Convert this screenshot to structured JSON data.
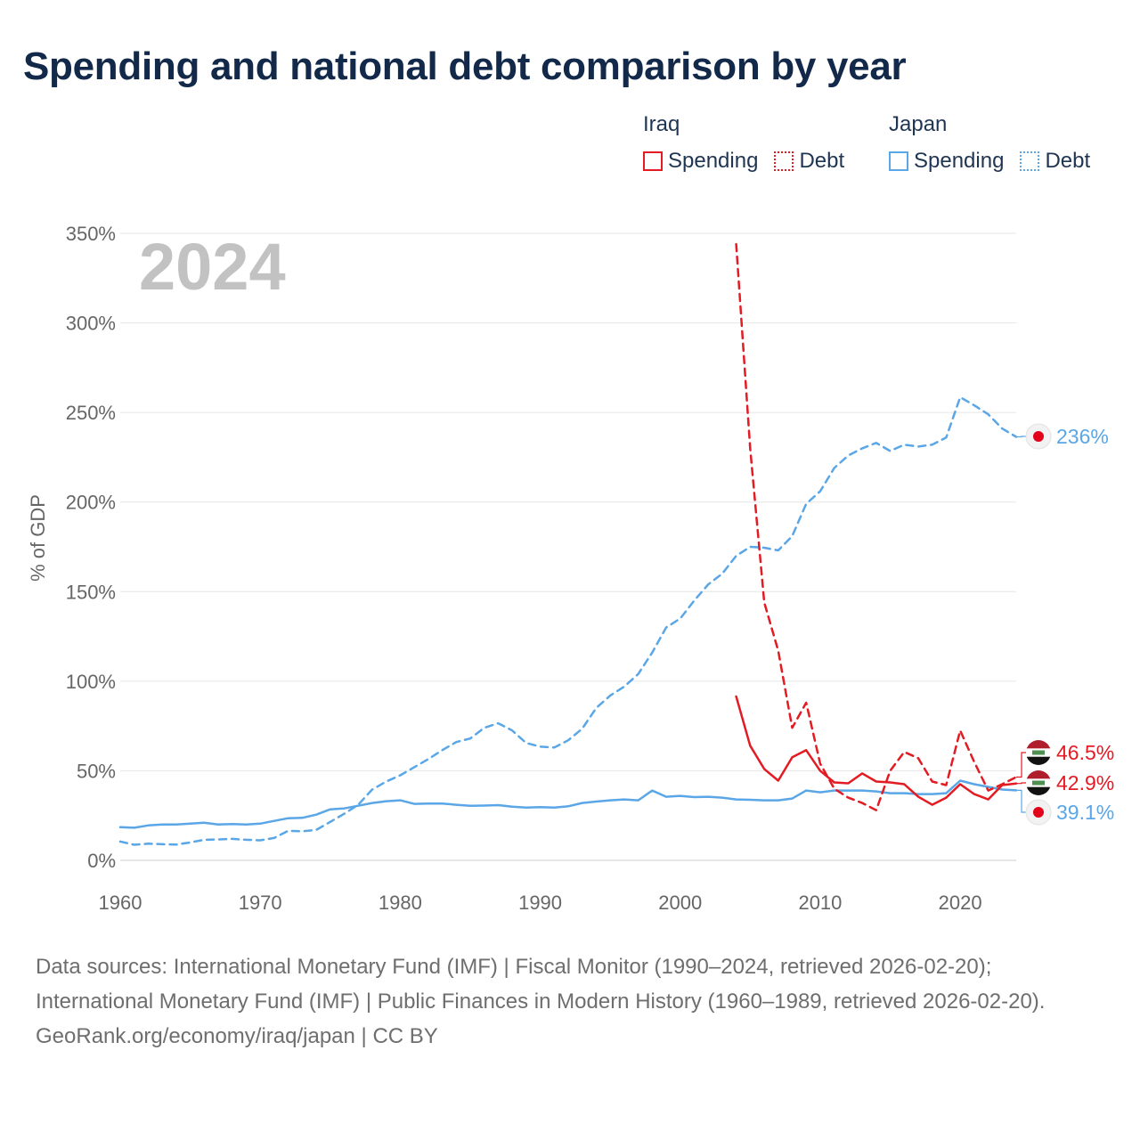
{
  "title": "Spending and national debt comparison by year",
  "legend": {
    "groups": [
      {
        "country": "Iraq",
        "items": [
          {
            "label": "Spending"
          },
          {
            "label": "Debt"
          }
        ]
      },
      {
        "country": "Japan",
        "items": [
          {
            "label": "Spending"
          },
          {
            "label": "Debt"
          }
        ]
      }
    ]
  },
  "colors": {
    "iraq": "#e31b23",
    "japan": "#5aa6e6",
    "grid": "#e6e6e6",
    "axis_text": "#666666",
    "year_watermark": "#c2c2c2"
  },
  "footer": {
    "sources": "Data sources: International Monetary Fund (IMF) | Fiscal Monitor (1990–2024, retrieved 2026-02-20); International Monetary Fund (IMF) | Public Finances in Modern History (1960–1989, retrieved 2026-02-20).",
    "credit": "GeoRank.org/economy/iraq/japan | CC BY"
  },
  "chart_data": {
    "type": "line",
    "year_label": "2024",
    "ylabel": "% of GDP",
    "xlabel": "",
    "xlim": [
      1960,
      2024
    ],
    "ylim": [
      0,
      350
    ],
    "y_ticks": [
      0,
      50,
      100,
      150,
      200,
      250,
      300,
      350
    ],
    "y_tick_labels": [
      "0%",
      "50%",
      "100%",
      "150%",
      "200%",
      "250%",
      "300%",
      "350%"
    ],
    "x_ticks": [
      1960,
      1970,
      1980,
      1990,
      2000,
      2010,
      2020
    ],
    "x_tick_labels": [
      "1960",
      "1970",
      "1980",
      "1990",
      "2000",
      "2010",
      "2020"
    ],
    "grid": true,
    "series": [
      {
        "name": "Japan Debt",
        "country": "Japan",
        "metric": "Debt",
        "color": "#5aa6e6",
        "style": "dashed",
        "x": [
          1960,
          1961,
          1962,
          1963,
          1964,
          1965,
          1966,
          1967,
          1968,
          1969,
          1970,
          1971,
          1972,
          1973,
          1974,
          1975,
          1976,
          1977,
          1978,
          1979,
          1980,
          1981,
          1982,
          1983,
          1984,
          1985,
          1986,
          1987,
          1988,
          1989,
          1990,
          1991,
          1992,
          1993,
          1994,
          1995,
          1996,
          1997,
          1998,
          1999,
          2000,
          2001,
          2002,
          2003,
          2004,
          2005,
          2006,
          2007,
          2008,
          2009,
          2010,
          2011,
          2012,
          2013,
          2014,
          2015,
          2016,
          2017,
          2018,
          2019,
          2020,
          2021,
          2022,
          2023,
          2024
        ],
        "values": [
          10.5,
          8.7,
          9.3,
          9.0,
          8.8,
          10.0,
          11.5,
          11.7,
          12.0,
          11.5,
          11.2,
          12.5,
          16.5,
          16.2,
          17.0,
          21.5,
          26.0,
          31.0,
          39.5,
          44.0,
          47.5,
          52.0,
          56.5,
          61.5,
          66.0,
          68.0,
          74.0,
          76.5,
          72.5,
          65.5,
          63.5,
          63.0,
          67.0,
          73.5,
          85.0,
          92.0,
          97.0,
          104.0,
          116.0,
          130.0,
          135.0,
          145.0,
          154.0,
          160.0,
          170.0,
          175.0,
          174.5,
          173.0,
          181.0,
          199.0,
          206.0,
          219.0,
          226.0,
          230.0,
          233.0,
          228.5,
          232.0,
          231.0,
          232.0,
          236.0,
          258.5,
          254.0,
          249.0,
          241.0,
          236.4
        ]
      },
      {
        "name": "Japan Spending",
        "country": "Japan",
        "metric": "Spending",
        "color": "#5aa6e6",
        "style": "solid",
        "x": [
          1960,
          1961,
          1962,
          1963,
          1964,
          1965,
          1966,
          1967,
          1968,
          1969,
          1970,
          1971,
          1972,
          1973,
          1974,
          1975,
          1976,
          1977,
          1978,
          1979,
          1980,
          1981,
          1982,
          1983,
          1984,
          1985,
          1986,
          1987,
          1988,
          1989,
          1990,
          1991,
          1992,
          1993,
          1994,
          1995,
          1996,
          1997,
          1998,
          1999,
          2000,
          2001,
          2002,
          2003,
          2004,
          2005,
          2006,
          2007,
          2008,
          2009,
          2010,
          2011,
          2012,
          2013,
          2014,
          2015,
          2016,
          2017,
          2018,
          2019,
          2020,
          2021,
          2022,
          2023,
          2024
        ],
        "values": [
          18.5,
          18.2,
          19.5,
          20.0,
          20.0,
          20.5,
          21.0,
          20.0,
          20.3,
          20.0,
          20.5,
          22.0,
          23.5,
          23.7,
          25.5,
          28.5,
          29.0,
          30.5,
          32.0,
          33.0,
          33.5,
          31.5,
          31.7,
          31.7,
          31.0,
          30.5,
          30.6,
          30.8,
          30.0,
          29.5,
          29.7,
          29.5,
          30.2,
          32.0,
          32.8,
          33.5,
          34.0,
          33.5,
          39.0,
          35.5,
          36.0,
          35.3,
          35.5,
          35.0,
          34.0,
          33.8,
          33.5,
          33.5,
          34.5,
          39.0,
          38.0,
          39.0,
          39.0,
          39.0,
          38.5,
          37.5,
          37.5,
          37.0,
          37.0,
          37.5,
          44.5,
          42.5,
          41.0,
          39.5,
          39.1
        ]
      },
      {
        "name": "Iraq Debt",
        "country": "Iraq",
        "metric": "Debt",
        "color": "#e31b23",
        "style": "dashed",
        "x": [
          2004,
          2005,
          2006,
          2007,
          2008,
          2009,
          2010,
          2011,
          2012,
          2013,
          2014,
          2015,
          2016,
          2017,
          2018,
          2019,
          2020,
          2021,
          2022,
          2023,
          2024
        ],
        "values": [
          344.0,
          230.0,
          144.0,
          117.0,
          74.0,
          88.0,
          54.0,
          40.0,
          35.0,
          32.0,
          28.0,
          50.0,
          60.5,
          57.0,
          44.0,
          42.0,
          72.5,
          55.0,
          39.0,
          42.5,
          46.5
        ]
      },
      {
        "name": "Iraq Spending",
        "country": "Iraq",
        "metric": "Spending",
        "color": "#e31b23",
        "style": "solid",
        "x": [
          2004,
          2005,
          2006,
          2007,
          2008,
          2009,
          2010,
          2011,
          2012,
          2013,
          2014,
          2015,
          2016,
          2017,
          2018,
          2019,
          2020,
          2021,
          2022,
          2023,
          2024
        ],
        "values": [
          91.5,
          64.0,
          51.0,
          44.5,
          57.5,
          61.5,
          50.0,
          43.5,
          43.0,
          48.5,
          44.0,
          43.5,
          42.5,
          35.5,
          31.0,
          35.0,
          42.5,
          37.0,
          34.0,
          42.0,
          42.9
        ]
      }
    ],
    "end_labels": [
      {
        "text": "236%",
        "series": "Japan Debt",
        "value": 236.4,
        "color": "#5aa6e6",
        "flag": "japan"
      },
      {
        "text": "46.5%",
        "series": "Iraq Debt",
        "value": 46.5,
        "color": "#e31b23",
        "flag": "iraq"
      },
      {
        "text": "42.9%",
        "series": "Iraq Spending",
        "value": 42.9,
        "color": "#e31b23",
        "flag": "iraq"
      },
      {
        "text": "39.1%",
        "series": "Japan Spending",
        "value": 39.1,
        "color": "#5aa6e6",
        "flag": "japan"
      }
    ]
  }
}
